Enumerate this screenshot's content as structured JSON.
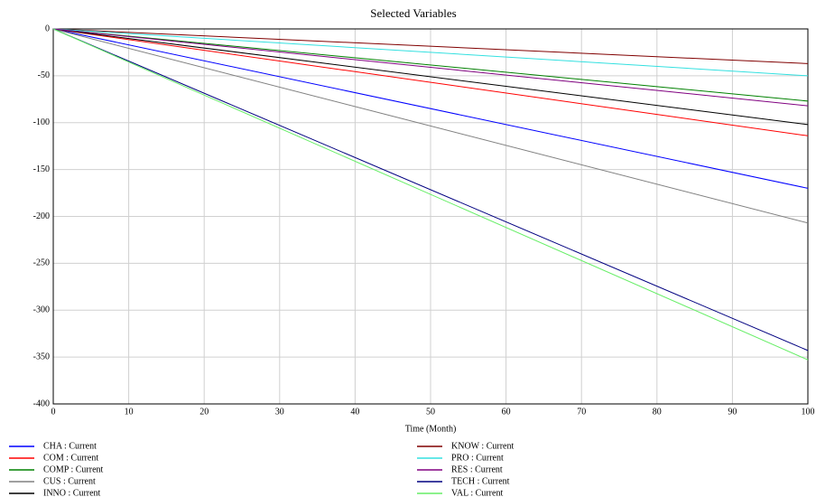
{
  "chart_data": {
    "type": "line",
    "title": "Selected Variables",
    "x_label": "Time (Month)",
    "x": [
      0,
      100
    ],
    "series": [
      {
        "name": "CHA : Current",
        "color": "#0000ff",
        "values": [
          0,
          -170
        ]
      },
      {
        "name": "COM : Current",
        "color": "#ff0000",
        "values": [
          0,
          -114
        ]
      },
      {
        "name": "COMP : Current",
        "color": "#008000",
        "values": [
          0,
          -77
        ]
      },
      {
        "name": "CUS : Current",
        "color": "#808080",
        "values": [
          0,
          -207
        ]
      },
      {
        "name": "INNO : Current",
        "color": "#000000",
        "values": [
          0,
          -102
        ]
      },
      {
        "name": "KNOW : Current",
        "color": "#800000",
        "values": [
          0,
          -37
        ]
      },
      {
        "name": "PRO : Current",
        "color": "#33e0e0",
        "values": [
          0,
          -50
        ]
      },
      {
        "name": "RES : Current",
        "color": "#800080",
        "values": [
          0,
          -82
        ]
      },
      {
        "name": "TECH : Current",
        "color": "#000080",
        "values": [
          0,
          -343
        ]
      },
      {
        "name": "VAL : Current",
        "color": "#66ee66",
        "values": [
          0,
          -353
        ]
      }
    ],
    "xlim": [
      0,
      100
    ],
    "xticks": [
      0,
      10,
      20,
      30,
      40,
      50,
      60,
      70,
      80,
      90,
      100
    ],
    "ylim": [
      -400,
      0
    ],
    "yticks": [
      0,
      -50,
      -100,
      -150,
      -200,
      -250,
      -300,
      -350,
      -400
    ],
    "grid": true
  }
}
